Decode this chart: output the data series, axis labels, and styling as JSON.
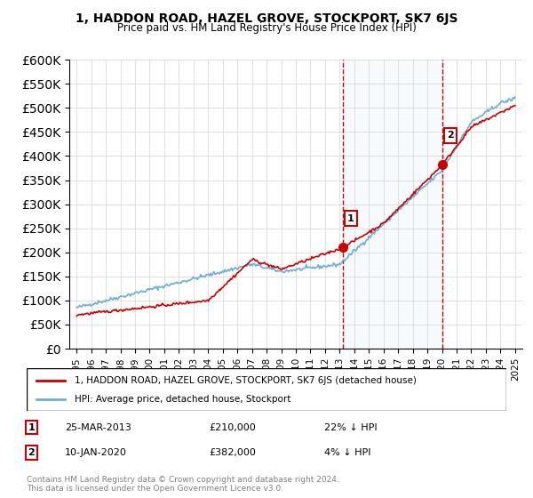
{
  "title": "1, HADDON ROAD, HAZEL GROVE, STOCKPORT, SK7 6JS",
  "subtitle": "Price paid vs. HM Land Registry's House Price Index (HPI)",
  "legend_line1": "1, HADDON ROAD, HAZEL GROVE, STOCKPORT, SK7 6JS (detached house)",
  "legend_line2": "HPI: Average price, detached house, Stockport",
  "annotation1_label": "1",
  "annotation1_date": "25-MAR-2013",
  "annotation1_price": "£210,000",
  "annotation1_hpi": "22% ↓ HPI",
  "annotation1_year": 2013.23,
  "annotation1_value": 210000,
  "annotation2_label": "2",
  "annotation2_date": "10-JAN-2020",
  "annotation2_price": "£382,000",
  "annotation2_hpi": "4% ↓ HPI",
  "annotation2_year": 2020.03,
  "annotation2_value": 382000,
  "copyright": "Contains HM Land Registry data © Crown copyright and database right 2024.\nThis data is licensed under the Open Government Licence v3.0.",
  "hpi_color": "#6aafd6",
  "sale_color": "#cc0000",
  "annotation_box_color": "#cc0000",
  "shaded_region_color": "#d0e4f0",
  "ylim_min": 0,
  "ylim_max": 600000,
  "xlim_min": 1994.5,
  "xlim_max": 2025.5,
  "ytick_step": 50000,
  "background_color": "#ffffff"
}
